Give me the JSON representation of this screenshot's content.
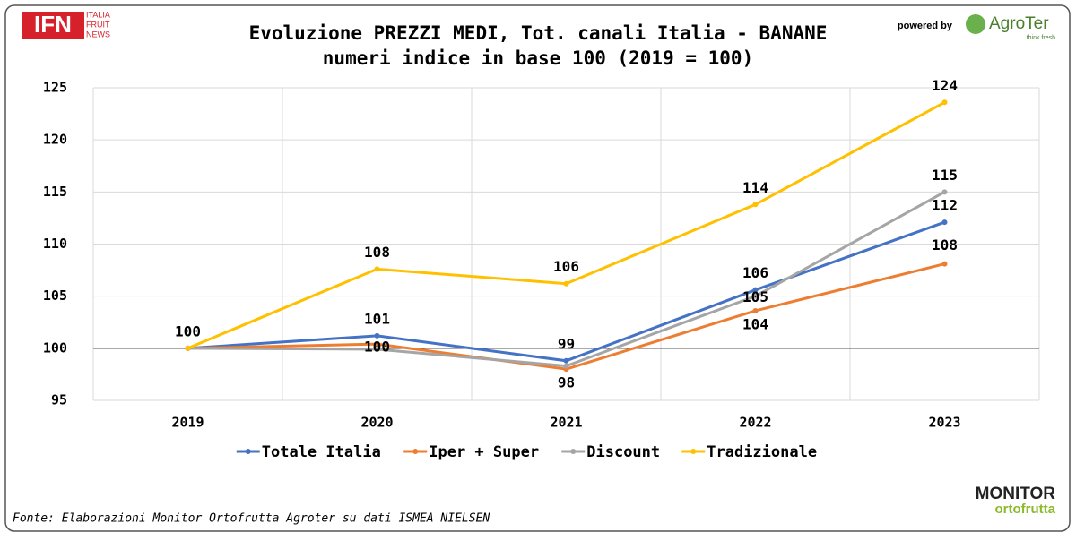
{
  "branding": {
    "ifn": "IFN",
    "ifn_lines": [
      "ITALIA",
      "FRUIT",
      "NEWS"
    ],
    "powered_by": "powered by",
    "agroter": "AgroTer",
    "agroter_tagline": "think fresh",
    "monitor": "MONITOR",
    "ortofrutta": "ortofrutta"
  },
  "source": "Fonte: Elaborazioni Monitor Ortofrutta Agroter su dati ISMEA NIELSEN",
  "chart_data": {
    "type": "line",
    "title": "Evoluzione PREZZI MEDI, Tot. canali Italia - BANANE",
    "subtitle": "numeri indice in base 100 (2019 = 100)",
    "categories": [
      "2019",
      "2020",
      "2021",
      "2022",
      "2023"
    ],
    "series": [
      {
        "name": "Totale Italia",
        "color": "#4472c4",
        "values": [
          100,
          101.2,
          98.8,
          105.6,
          112.1
        ],
        "value_labels": [
          null,
          "101",
          "99",
          "106",
          "112"
        ]
      },
      {
        "name": "Iper + Super",
        "color": "#ed7d31",
        "values": [
          100,
          100.4,
          98.0,
          103.6,
          108.1
        ],
        "value_labels": [
          null,
          "100",
          "98",
          "104",
          "108"
        ]
      },
      {
        "name": "Discount",
        "color": "#a5a5a5",
        "values": [
          100,
          99.9,
          98.3,
          105.0,
          115.0
        ],
        "value_labels": [
          null,
          null,
          null,
          "105",
          "115"
        ]
      },
      {
        "name": "Tradizionale",
        "color": "#ffc000",
        "values": [
          100,
          107.6,
          106.2,
          113.8,
          123.6
        ],
        "value_labels": [
          "100",
          "108",
          "106",
          "114",
          "124"
        ]
      }
    ],
    "ylim": [
      95,
      125
    ],
    "yticks": [
      95,
      100,
      105,
      110,
      115,
      120,
      125
    ],
    "reference_line": 100,
    "grid": true,
    "legend": "bottom"
  }
}
